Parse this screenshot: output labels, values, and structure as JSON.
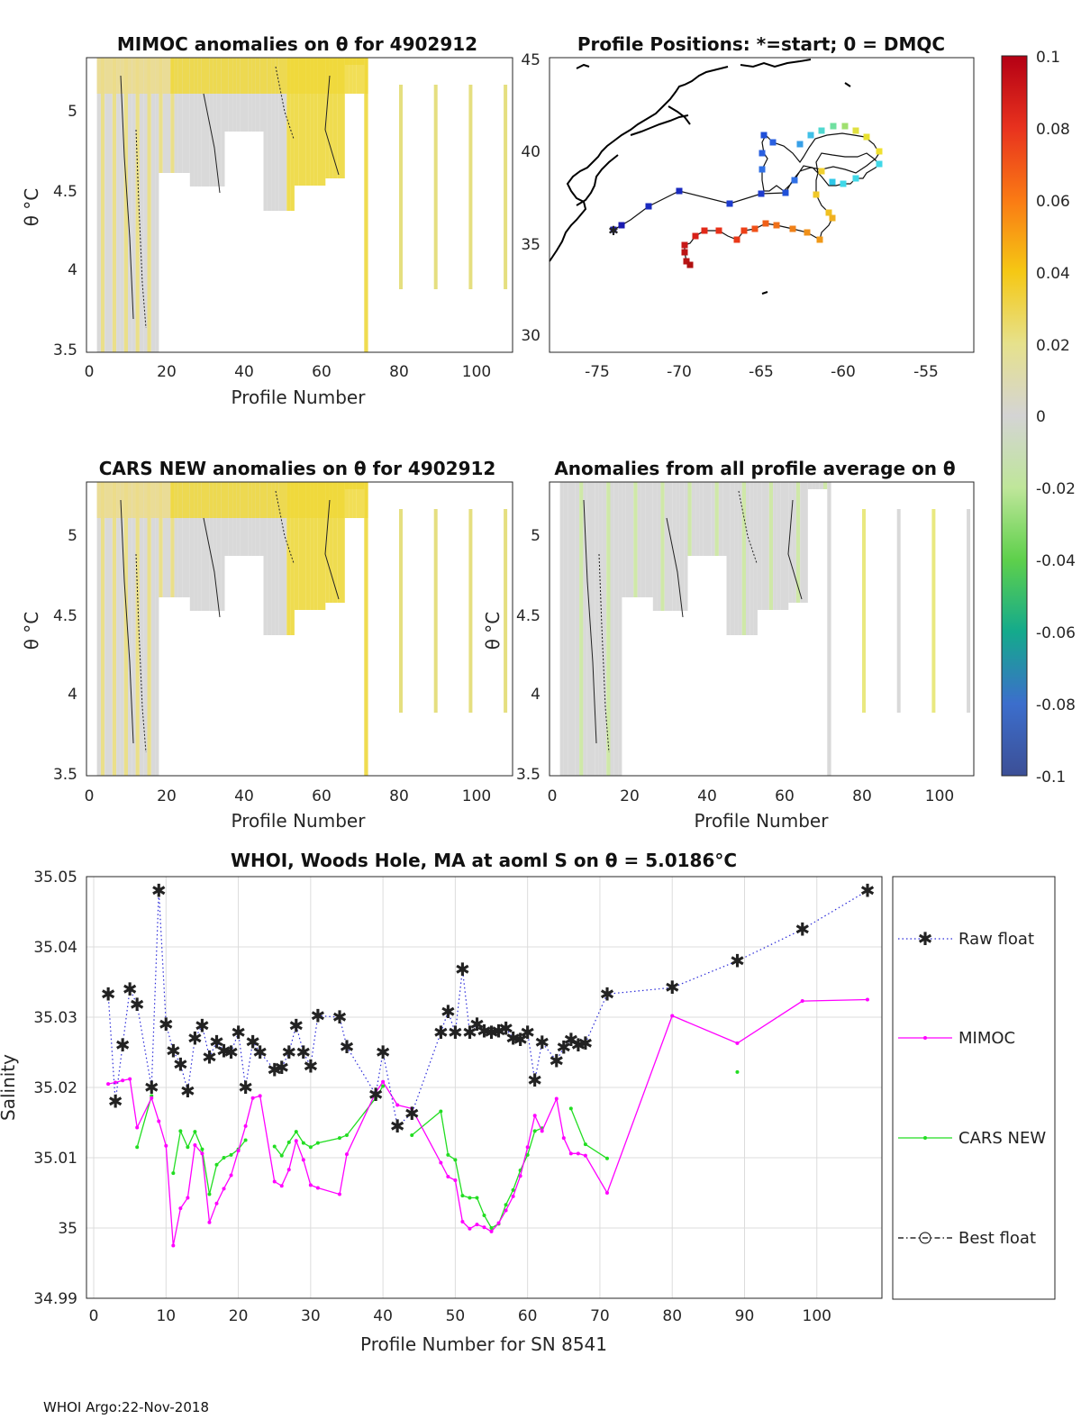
{
  "colors": {
    "raw": "#2b2bd9",
    "mimoc": "#ff00ff",
    "cars": "#22dd22",
    "best": "#000000",
    "grid": "#dcdcdc"
  },
  "panels": {
    "mimoc": {
      "title": "MIMOC anomalies on θ  for 4902912",
      "xlabel": "Profile Number",
      "ylabel": "θ °C",
      "xticks": [
        "0",
        "20",
        "40",
        "60",
        "80",
        "100"
      ],
      "yticks": [
        "3.5",
        "4",
        "4.5",
        "5"
      ]
    },
    "positions": {
      "title": "Profile Positions: *=start; 0 = DMQC",
      "xticks": [
        "-75",
        "-70",
        "-65",
        "-60",
        "-55"
      ],
      "yticks": [
        "30",
        "35",
        "40",
        "45"
      ]
    },
    "cars": {
      "title": "CARS NEW anomalies on θ for 4902912",
      "xlabel": "Profile Number",
      "ylabel": "θ °C",
      "xticks": [
        "0",
        "20",
        "40",
        "60",
        "80",
        "100"
      ],
      "yticks": [
        "3.5",
        "4",
        "4.5",
        "5"
      ]
    },
    "avg": {
      "title": "Anomalies from all profile average on θ",
      "xlabel": "Profile Number",
      "ylabel": "θ °C",
      "xticks": [
        "0",
        "20",
        "40",
        "60",
        "80",
        "100"
      ],
      "yticks": [
        "3.5",
        "4",
        "4.5",
        "5"
      ]
    }
  },
  "colorbar": {
    "ticks": [
      "0.1",
      "0.08",
      "0.06",
      "0.04",
      "0.02",
      "0",
      "-0.02",
      "-0.04",
      "-0.06",
      "-0.08",
      "-0.1"
    ]
  },
  "chart_data": {
    "type": "line",
    "title": "WHOI, Woods Hole, MA at aoml S on θ = 5.0186°C",
    "xlabel": "Profile Number for SN 8541",
    "ylabel": "Salinity",
    "xlim": [
      -1,
      109
    ],
    "ylim": [
      34.99,
      35.05
    ],
    "xticks": [
      "0",
      "10",
      "20",
      "30",
      "40",
      "50",
      "60",
      "70",
      "80",
      "90",
      "100"
    ],
    "yticks": [
      "34.99",
      "35",
      "35.01",
      "35.02",
      "35.03",
      "35.04",
      "35.05"
    ],
    "series": [
      {
        "name": "Raw float",
        "points": [
          [
            2,
            35.0333
          ],
          [
            3,
            35.018
          ],
          [
            4,
            35.026
          ],
          [
            5,
            35.034
          ],
          [
            6,
            35.0318
          ],
          [
            8,
            35.02
          ],
          [
            9,
            35.048
          ],
          [
            10,
            35.029
          ],
          [
            11,
            35.0252
          ],
          [
            12,
            35.0233
          ],
          [
            13,
            35.0195
          ],
          [
            14,
            35.027
          ],
          [
            15,
            35.0288
          ],
          [
            16,
            35.0243
          ],
          [
            17,
            35.0265
          ],
          [
            18,
            35.0252
          ],
          [
            19,
            35.025
          ],
          [
            20,
            35.0278
          ],
          [
            21,
            35.02
          ],
          [
            22,
            35.0265
          ],
          [
            23,
            35.025
          ],
          [
            25,
            35.0225
          ],
          [
            26,
            35.0228
          ],
          [
            27,
            35.025
          ],
          [
            28,
            35.0288
          ],
          [
            29,
            35.025
          ],
          [
            30,
            35.023
          ],
          [
            31,
            35.0302
          ],
          [
            34,
            35.03
          ],
          [
            35,
            35.0258
          ],
          [
            39,
            35.019
          ],
          [
            40,
            35.025
          ],
          [
            42,
            35.0145
          ],
          [
            44,
            35.0163
          ],
          [
            48,
            35.0278
          ],
          [
            49,
            35.0308
          ],
          [
            50,
            35.0278
          ],
          [
            51,
            35.0368
          ],
          [
            52,
            35.0278
          ],
          [
            53,
            35.029
          ],
          [
            54,
            35.028
          ],
          [
            55,
            35.0278
          ],
          [
            56,
            35.028
          ],
          [
            57,
            35.0284
          ],
          [
            58,
            35.027
          ],
          [
            59,
            35.0268
          ],
          [
            60,
            35.0278
          ],
          [
            61,
            35.021
          ],
          [
            62,
            35.0264
          ],
          [
            64,
            35.0238
          ],
          [
            65,
            35.0257
          ],
          [
            66,
            35.0268
          ],
          [
            67,
            35.026
          ],
          [
            68,
            35.0263
          ],
          [
            71,
            35.0333
          ],
          [
            80,
            35.0342
          ],
          [
            89,
            35.038
          ],
          [
            98,
            35.0425
          ],
          [
            107,
            35.048
          ]
        ]
      },
      {
        "name": "MIMOC",
        "points": [
          [
            2,
            35.0205
          ],
          [
            3,
            35.0207
          ],
          [
            4,
            35.021
          ],
          [
            5,
            35.0212
          ],
          [
            6,
            35.0143
          ],
          [
            8,
            35.0185
          ],
          [
            9,
            35.0152
          ],
          [
            10,
            35.0117
          ],
          [
            11,
            34.9975
          ],
          [
            12,
            35.0028
          ],
          [
            13,
            35.0043
          ],
          [
            14,
            35.0118
          ],
          [
            15,
            35.0106
          ],
          [
            16,
            35.0008
          ],
          [
            17,
            35.0035
          ],
          [
            18,
            35.0056
          ],
          [
            19,
            35.0075
          ],
          [
            20,
            35.011
          ],
          [
            21,
            35.0145
          ],
          [
            22,
            35.0185
          ],
          [
            23,
            35.0188
          ],
          [
            25,
            35.0066
          ],
          [
            26,
            35.006
          ],
          [
            27,
            35.0083
          ],
          [
            28,
            35.0124
          ],
          [
            29,
            35.0097
          ],
          [
            30,
            35.0061
          ],
          [
            31,
            35.0057
          ],
          [
            34,
            35.0048
          ],
          [
            35,
            35.0105
          ],
          [
            39,
            35.0193
          ],
          [
            40,
            35.0208
          ],
          [
            42,
            35.0175
          ],
          [
            44,
            35.017
          ],
          [
            48,
            35.0093
          ],
          [
            49,
            35.0073
          ],
          [
            50,
            35.0068
          ],
          [
            51,
            35.0009
          ],
          [
            52,
            34.9999
          ],
          [
            53,
            35.0005
          ],
          [
            54,
            35.0001
          ],
          [
            55,
            34.9995
          ],
          [
            56,
            35.0007
          ],
          [
            57,
            35.0025
          ],
          [
            58,
            35.0045
          ],
          [
            59,
            35.0074
          ],
          [
            60,
            35.0115
          ],
          [
            61,
            35.016
          ],
          [
            62,
            35.0138
          ],
          [
            64,
            35.0184
          ],
          [
            65,
            35.0128
          ],
          [
            66,
            35.0106
          ],
          [
            67,
            35.0106
          ],
          [
            68,
            35.0103
          ],
          [
            71,
            35.005
          ],
          [
            80,
            35.0302
          ],
          [
            89,
            35.0263
          ],
          [
            98,
            35.0323
          ],
          [
            107,
            35.0325
          ]
        ]
      },
      {
        "name": "CARS NEW",
        "points": [
          [
            6,
            35.0115
          ],
          [
            8,
            35.0188
          ],
          [
            11,
            35.0078
          ],
          [
            12,
            35.0138
          ],
          [
            13,
            35.0115
          ],
          [
            14,
            35.0137
          ],
          [
            15,
            35.0112
          ],
          [
            16,
            35.0048
          ],
          [
            17,
            35.009
          ],
          [
            18,
            35.01
          ],
          [
            19,
            35.0104
          ],
          [
            20,
            35.0112
          ],
          [
            21,
            35.0125
          ],
          [
            25,
            35.0116
          ],
          [
            26,
            35.0103
          ],
          [
            27,
            35.0122
          ],
          [
            28,
            35.0137
          ],
          [
            29,
            35.0121
          ],
          [
            30,
            35.0115
          ],
          [
            31,
            35.0121
          ],
          [
            34,
            35.0128
          ],
          [
            35,
            35.0132
          ],
          [
            39,
            35.0185
          ],
          [
            40,
            35.0202
          ],
          [
            44,
            35.0132
          ],
          [
            48,
            35.0166
          ],
          [
            49,
            35.0104
          ],
          [
            50,
            35.0097
          ],
          [
            51,
            35.0046
          ],
          [
            52,
            35.0043
          ],
          [
            53,
            35.0043
          ],
          [
            54,
            35.0018
          ],
          [
            55,
            35.0
          ],
          [
            56,
            35.0006
          ],
          [
            57,
            35.0033
          ],
          [
            58,
            35.0054
          ],
          [
            59,
            35.0082
          ],
          [
            60,
            35.0104
          ],
          [
            61,
            35.0138
          ],
          [
            62,
            35.0142
          ],
          [
            66,
            35.017
          ],
          [
            68,
            35.0119
          ],
          [
            71,
            35.0099
          ],
          [
            89,
            35.0222
          ]
        ]
      },
      {
        "name": "Best float",
        "points": []
      }
    ]
  },
  "footer": "WHOI Argo:22-Nov-2018"
}
